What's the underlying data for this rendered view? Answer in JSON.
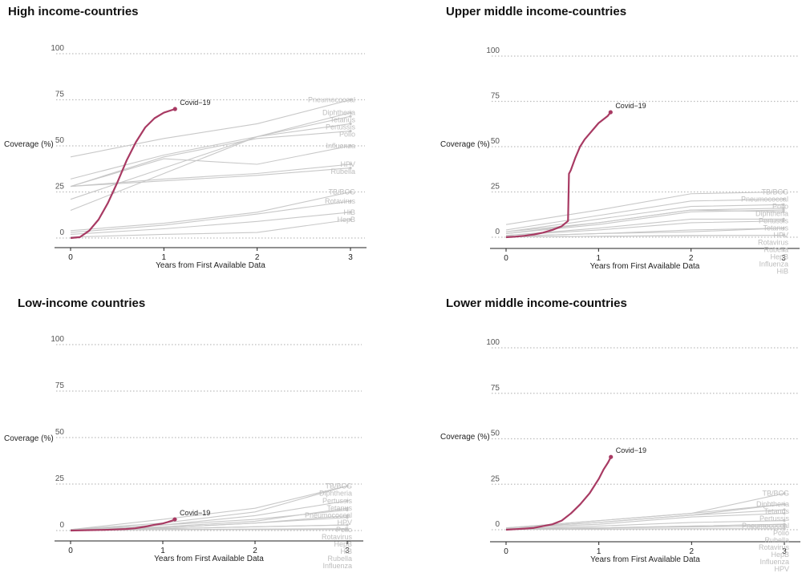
{
  "colors": {
    "covid": "#a83a63",
    "vaccine": "#c8c8c8",
    "grid": "#bdbdbd",
    "axis": "#222222"
  },
  "chart_data": [
    {
      "type": "line",
      "title": "High income-countries",
      "xlabel": "Years from First Available Data",
      "ylabel": "Coverage (%)",
      "xlim": [
        0,
        3
      ],
      "ylim": [
        0,
        100
      ],
      "x_ticks": [
        "0",
        "1",
        "2",
        "3"
      ],
      "y_ticks": [
        "100",
        "75",
        "50",
        "25",
        "0"
      ],
      "grid": "horizontal dotted",
      "covid": {
        "name": "Covid−19",
        "x": [
          0,
          0.1,
          0.2,
          0.3,
          0.4,
          0.5,
          0.6,
          0.7,
          0.8,
          0.9,
          1.0,
          1.12
        ],
        "y": [
          0,
          0.5,
          4,
          10,
          19,
          30,
          42,
          52,
          60,
          65,
          68,
          70
        ]
      },
      "series": [
        {
          "name": "Pneumococcal",
          "x": [
            0,
            1,
            2,
            3
          ],
          "y": [
            44,
            54,
            62,
            75
          ]
        },
        {
          "name": "Diphtheria",
          "x": [
            0,
            1,
            2,
            3
          ],
          "y": [
            15,
            35,
            55,
            68
          ]
        },
        {
          "name": "Tetanus",
          "x": [
            0,
            1,
            2,
            3
          ],
          "y": [
            21,
            38,
            55,
            66
          ]
        },
        {
          "name": "Pertussis",
          "x": [
            0,
            1,
            2,
            3
          ],
          "y": [
            32,
            45,
            55,
            62
          ]
        },
        {
          "name": "Polio",
          "x": [
            0,
            1,
            2,
            3
          ],
          "y": [
            28,
            44,
            54,
            58
          ]
        },
        {
          "name": "Influenza",
          "x": [
            0,
            1,
            2,
            3
          ],
          "y": [
            28,
            43,
            40,
            50
          ]
        },
        {
          "name": "HPV",
          "x": [
            0,
            1,
            2,
            3
          ],
          "y": [
            28,
            32,
            35,
            40
          ]
        },
        {
          "name": "Rubella",
          "x": [
            0,
            1,
            2,
            3
          ],
          "y": [
            28,
            31,
            34,
            38
          ]
        },
        {
          "name": "TB/BCG",
          "x": [
            0,
            1,
            2,
            3
          ],
          "y": [
            4,
            8,
            14,
            25
          ]
        },
        {
          "name": "Rotavirus",
          "x": [
            0,
            1,
            2,
            3
          ],
          "y": [
            3,
            7,
            13,
            20
          ]
        },
        {
          "name": "HiB",
          "x": [
            0,
            1,
            2,
            3
          ],
          "y": [
            2,
            5,
            9,
            14
          ]
        },
        {
          "name": "HepB",
          "x": [
            0,
            1,
            2,
            3
          ],
          "y": [
            0.5,
            2,
            3,
            10
          ]
        }
      ]
    },
    {
      "type": "line",
      "title": "Upper middle income-countries",
      "xlabel": "Years from First Available Data",
      "ylabel": "Coverage (%)",
      "xlim": [
        0,
        3
      ],
      "ylim": [
        0,
        100
      ],
      "x_ticks": [
        "0",
        "1",
        "2",
        "3"
      ],
      "y_ticks": [
        "100",
        "75",
        "50",
        "25",
        "0"
      ],
      "grid": "horizontal dotted",
      "covid": {
        "name": "Covid−19",
        "x": [
          0,
          0.1,
          0.2,
          0.3,
          0.4,
          0.5,
          0.6,
          0.67,
          0.68,
          0.7,
          0.75,
          0.8,
          0.85,
          0.9,
          0.95,
          1.0,
          1.05,
          1.1,
          1.13
        ],
        "y": [
          0,
          0.3,
          0.8,
          1.5,
          2.5,
          4,
          6,
          9,
          35,
          37,
          44,
          50,
          54,
          57,
          60,
          63,
          65,
          67,
          69
        ]
      },
      "series": [
        {
          "name": "TB/BCG",
          "x": [
            0,
            1,
            2,
            3
          ],
          "y": [
            7,
            15,
            24,
            25
          ]
        },
        {
          "name": "Pneumococcal",
          "x": [
            0,
            1,
            2,
            3
          ],
          "y": [
            4,
            12,
            20,
            21
          ]
        },
        {
          "name": "Polio",
          "x": [
            0,
            1,
            2,
            3
          ],
          "y": [
            3,
            10,
            17,
            18
          ]
        },
        {
          "name": "Diphtheria",
          "x": [
            0,
            1,
            2,
            3
          ],
          "y": [
            2,
            8,
            15,
            16
          ]
        },
        {
          "name": "Pertussis",
          "x": [
            0,
            1,
            2,
            3
          ],
          "y": [
            2,
            7,
            14,
            15
          ]
        },
        {
          "name": "Tetanus",
          "x": [
            0,
            1,
            2,
            3
          ],
          "y": [
            3,
            8,
            15,
            14
          ]
        },
        {
          "name": "HPV",
          "x": [
            0,
            1,
            2,
            3
          ],
          "y": [
            1,
            5,
            10,
            10
          ]
        },
        {
          "name": "Rotavirus",
          "x": [
            0,
            1,
            2,
            3
          ],
          "y": [
            1,
            4,
            8,
            9
          ]
        },
        {
          "name": "Rubella",
          "x": [
            0,
            1,
            2,
            3
          ],
          "y": [
            0.5,
            2,
            4,
            5
          ]
        },
        {
          "name": "HepB",
          "x": [
            0,
            1,
            2,
            3
          ],
          "y": [
            0.5,
            2,
            3,
            5
          ]
        },
        {
          "name": "Influenza",
          "x": [
            0,
            1,
            2,
            3
          ],
          "y": [
            0.2,
            0.5,
            1,
            1
          ]
        },
        {
          "name": "HiB",
          "x": [
            0,
            1,
            2,
            3
          ],
          "y": [
            0.2,
            0.5,
            0.8,
            1
          ]
        }
      ]
    },
    {
      "type": "line",
      "title": "Low-income countries",
      "xlabel": "Years from First Available Data",
      "ylabel": "Coverage (%)",
      "xlim": [
        0,
        3
      ],
      "ylim": [
        0,
        100
      ],
      "x_ticks": [
        "0",
        "1",
        "2",
        "3"
      ],
      "y_ticks": [
        "100",
        "75",
        "50",
        "25",
        "0"
      ],
      "grid": "horizontal dotted",
      "covid": {
        "name": "Covid−19",
        "x": [
          0,
          0.2,
          0.4,
          0.6,
          0.7,
          0.8,
          0.9,
          1.0,
          1.05,
          1.1,
          1.13
        ],
        "y": [
          0,
          0.2,
          0.4,
          0.8,
          1.2,
          2,
          3,
          3.8,
          4.5,
          5.3,
          6
        ]
      },
      "series": [
        {
          "name": "TB/BCG",
          "x": [
            0,
            1,
            2,
            3
          ],
          "y": [
            0.5,
            6,
            12,
            24
          ]
        },
        {
          "name": "Diphtheria",
          "x": [
            0,
            1,
            2,
            3
          ],
          "y": [
            0.5,
            4,
            10,
            24
          ]
        },
        {
          "name": "Pertussis",
          "x": [
            0,
            1,
            2,
            3
          ],
          "y": [
            0.5,
            3,
            8,
            16
          ]
        },
        {
          "name": "Pneumococcal",
          "x": [
            0,
            1,
            2,
            3
          ],
          "y": [
            0.5,
            3,
            6,
            11
          ]
        },
        {
          "name": "Tetanus",
          "x": [
            0,
            1,
            2,
            3
          ],
          "y": [
            0.5,
            2,
            5,
            12
          ]
        },
        {
          "name": "HPV",
          "x": [
            0,
            1,
            2,
            3
          ],
          "y": [
            0.5,
            1.5,
            4,
            8
          ]
        },
        {
          "name": "Polio",
          "x": [
            0,
            1,
            2,
            3
          ],
          "y": [
            0.5,
            1.5,
            4,
            7
          ]
        },
        {
          "name": "Rotavirus",
          "x": [
            0,
            1,
            2,
            3
          ],
          "y": [
            0.5,
            1,
            2,
            3
          ]
        },
        {
          "name": "HepB",
          "x": [
            0,
            1,
            2,
            3
          ],
          "y": [
            0.5,
            1,
            2,
            3
          ]
        },
        {
          "name": "Influenza",
          "x": [
            0,
            1,
            2,
            3
          ],
          "y": [
            0.2,
            0.5,
            0.5,
            0.5
          ]
        },
        {
          "name": "Rubella",
          "x": [
            0,
            1,
            2,
            3
          ],
          "y": [
            0.2,
            0.5,
            0.6,
            0.6
          ]
        },
        {
          "name": "HiB",
          "x": [
            0,
            1,
            2,
            3
          ],
          "y": [
            0.2,
            0.5,
            0.8,
            1
          ]
        }
      ]
    },
    {
      "type": "line",
      "title": "Lower middle income-countries",
      "xlabel": "Years from First Available Data",
      "ylabel": "Coverage (%)",
      "xlim": [
        0,
        3
      ],
      "ylim": [
        0,
        100
      ],
      "x_ticks": [
        "0",
        "1",
        "2",
        "3"
      ],
      "y_ticks": [
        "100",
        "75",
        "50",
        "25",
        "0"
      ],
      "grid": "horizontal dotted",
      "covid": {
        "name": "Covid−19",
        "x": [
          0,
          0.1,
          0.2,
          0.3,
          0.4,
          0.5,
          0.6,
          0.7,
          0.8,
          0.9,
          1.0,
          1.05,
          1.1,
          1.13
        ],
        "y": [
          0,
          0.3,
          0.6,
          1,
          2,
          3,
          5,
          9,
          14,
          20,
          28,
          33,
          37,
          40
        ]
      },
      "series": [
        {
          "name": "TB/BCG",
          "x": [
            0,
            1,
            2,
            3
          ],
          "y": [
            1,
            5,
            9,
            20
          ]
        },
        {
          "name": "Diphtheria",
          "x": [
            0,
            1,
            2,
            3
          ],
          "y": [
            1,
            5,
            9,
            14
          ]
        },
        {
          "name": "Tetanus",
          "x": [
            0,
            1,
            2,
            3
          ],
          "y": [
            1,
            4,
            8,
            14
          ]
        },
        {
          "name": "Pertussis",
          "x": [
            0,
            1,
            2,
            3
          ],
          "y": [
            1,
            4,
            8,
            11
          ]
        },
        {
          "name": "Pneumococcal",
          "x": [
            0,
            1,
            2,
            3
          ],
          "y": [
            1,
            3,
            7,
            9
          ]
        },
        {
          "name": "Polio",
          "x": [
            0,
            1,
            2,
            3
          ],
          "y": [
            0.5,
            2,
            4,
            5
          ]
        },
        {
          "name": "Rubella",
          "x": [
            0,
            1,
            2,
            3
          ],
          "y": [
            0.5,
            1,
            2,
            3
          ]
        },
        {
          "name": "Rotavirus",
          "x": [
            0,
            1,
            2,
            3
          ],
          "y": [
            0.5,
            1,
            2,
            3
          ]
        },
        {
          "name": "HepB",
          "x": [
            0,
            1,
            2,
            3
          ],
          "y": [
            0.5,
            1,
            1.5,
            2
          ]
        },
        {
          "name": "Influenza",
          "x": [
            0,
            1,
            2,
            3
          ],
          "y": [
            0.2,
            0.5,
            0.5,
            0.5
          ]
        },
        {
          "name": "HPV",
          "x": [
            0,
            1,
            2,
            3
          ],
          "y": [
            0.2,
            0.3,
            0.5,
            0.5
          ]
        },
        {
          "name": "HiB",
          "x": [
            0,
            1,
            2,
            3
          ],
          "y": [
            0.2,
            0.3,
            0.5,
            0.5
          ]
        }
      ]
    }
  ]
}
